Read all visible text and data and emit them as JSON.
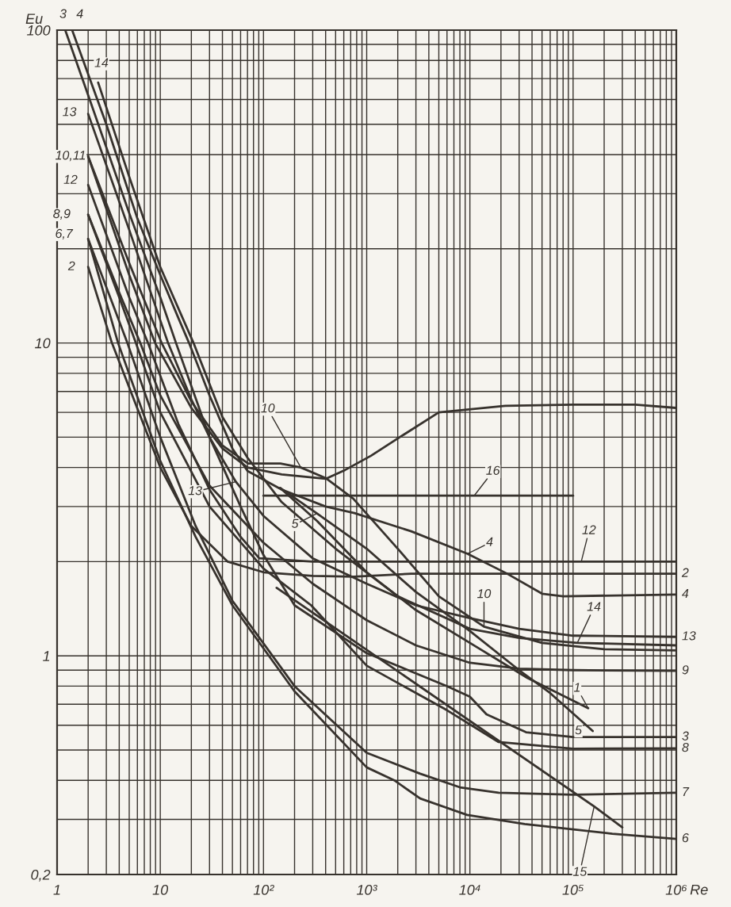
{
  "chart_data": {
    "type": "line",
    "xlabel": "Re",
    "ylabel": "Eu",
    "log": "xy",
    "grid": true,
    "xlim": [
      1,
      1000000
    ],
    "ylim": [
      0.2,
      100
    ],
    "xticks": [
      1,
      {
        "value": 2,
        "label": null
      },
      {
        "value": 3,
        "label": null
      },
      {
        "value": 4,
        "label": null
      },
      {
        "value": 5,
        "label": null
      },
      {
        "value": 6,
        "label": null
      },
      {
        "value": 7,
        "label": null
      },
      {
        "value": 8,
        "label": null
      },
      {
        "value": 9,
        "label": null
      },
      10,
      {
        "value": 20,
        "label": null
      },
      {
        "value": 30,
        "label": null
      },
      {
        "value": 40,
        "label": null
      },
      {
        "value": 50,
        "label": null
      },
      {
        "value": 60,
        "label": null
      },
      {
        "value": 70,
        "label": null
      },
      {
        "value": 80,
        "label": null
      },
      {
        "value": 90,
        "label": null
      },
      {
        "value": 100,
        "label": "10²"
      },
      {
        "value": 200,
        "label": null
      },
      {
        "value": 300,
        "label": null
      },
      {
        "value": 400,
        "label": null
      },
      {
        "value": 500,
        "label": null
      },
      {
        "value": 600,
        "label": null
      },
      {
        "value": 700,
        "label": null
      },
      {
        "value": 800,
        "label": null
      },
      {
        "value": 900,
        "label": null
      },
      {
        "value": 1000,
        "label": "10³"
      },
      {
        "value": 2000,
        "label": null
      },
      {
        "value": 3000,
        "label": null
      },
      {
        "value": 4000,
        "label": null
      },
      {
        "value": 5000,
        "label": null
      },
      {
        "value": 6000,
        "label": null
      },
      {
        "value": 7000,
        "label": null
      },
      {
        "value": 8000,
        "label": null
      },
      {
        "value": 9000,
        "label": null
      },
      {
        "value": 10000,
        "label": "10⁴"
      },
      {
        "value": 20000,
        "label": null
      },
      {
        "value": 30000,
        "label": null
      },
      {
        "value": 40000,
        "label": null
      },
      {
        "value": 50000,
        "label": null
      },
      {
        "value": 60000,
        "label": null
      },
      {
        "value": 70000,
        "label": null
      },
      {
        "value": 80000,
        "label": null
      },
      {
        "value": 90000,
        "label": null
      },
      {
        "value": 100000,
        "label": "10⁵"
      },
      {
        "value": 200000,
        "label": null
      },
      {
        "value": 300000,
        "label": null
      },
      {
        "value": 400000,
        "label": null
      },
      {
        "value": 500000,
        "label": null
      },
      {
        "value": 600000,
        "label": null
      },
      {
        "value": 700000,
        "label": null
      },
      {
        "value": 800000,
        "label": null
      },
      {
        "value": 900000,
        "label": null
      },
      {
        "value": 1000000,
        "label": "10⁶"
      }
    ],
    "yticks": [
      {
        "value": 0.2,
        "label": "0,2"
      },
      {
        "value": 0.3,
        "label": null
      },
      {
        "value": 0.4,
        "label": null
      },
      {
        "value": 0.5,
        "label": null
      },
      {
        "value": 0.6,
        "label": null
      },
      {
        "value": 0.7,
        "label": null
      },
      {
        "value": 0.8,
        "label": null
      },
      {
        "value": 0.9,
        "label": null
      },
      1,
      {
        "value": 2,
        "label": null
      },
      {
        "value": 3,
        "label": null
      },
      {
        "value": 4,
        "label": null
      },
      {
        "value": 5,
        "label": null
      },
      {
        "value": 6,
        "label": null
      },
      {
        "value": 7,
        "label": null
      },
      {
        "value": 8,
        "label": null
      },
      {
        "value": 9,
        "label": null
      },
      10,
      {
        "value": 20,
        "label": null
      },
      {
        "value": 30,
        "label": null
      },
      {
        "value": 40,
        "label": null
      },
      {
        "value": 50,
        "label": null
      },
      {
        "value": 60,
        "label": null
      },
      {
        "value": 70,
        "label": null
      },
      {
        "value": 80,
        "label": null
      },
      {
        "value": 90,
        "label": null
      },
      100
    ],
    "series": [
      {
        "color": "#37322d",
        "x": [
          1.2,
          2,
          5,
          10,
          14.2,
          30,
          60,
          100,
          200,
          1000,
          6000,
          10000,
          14500,
          35000,
          100000,
          1000000
        ],
        "values": [
          100,
          62,
          26,
          14,
          10,
          5,
          3.0,
          2.1,
          1.45,
          1.02,
          0.8,
          0.74,
          0.65,
          0.57,
          0.55,
          0.55
        ]
      },
      {
        "color": "#37322d",
        "x": [
          1.4,
          3,
          6,
          10,
          15,
          19,
          30,
          50,
          70,
          150,
          400,
          760,
          2700,
          9500,
          23000,
          50000,
          80000,
          1000000
        ],
        "values": [
          100,
          50,
          25,
          16.5,
          12,
          10,
          6.8,
          4.6,
          3.9,
          3.4,
          3.0,
          2.86,
          2.5,
          2.12,
          1.83,
          1.58,
          1.55,
          1.57
        ]
      },
      {
        "color": "#37322d",
        "x": [
          2.5,
          5,
          10,
          21,
          40,
          70,
          150,
          500,
          2000,
          10000,
          30000,
          110000,
          1000000
        ],
        "values": [
          68,
          34,
          17.5,
          10,
          5.8,
          4.3,
          3.1,
          2.2,
          1.55,
          1.22,
          1.14,
          1.1,
          1.08
        ]
      },
      {
        "color": "#37322d",
        "x": [
          2,
          5,
          11.9,
          20,
          30,
          54,
          100,
          300,
          1000,
          3000,
          10000,
          30000,
          100000,
          1000000
        ],
        "values": [
          54,
          23,
          10,
          6.6,
          5.0,
          3.6,
          2.8,
          2.05,
          1.7,
          1.45,
          1.32,
          1.22,
          1.16,
          1.15
        ]
      },
      {
        "color": "#37322d",
        "x": [
          2,
          5,
          8.9,
          20,
          40,
          70,
          150,
          400,
          620,
          1100,
          2300,
          5000,
          22000,
          100000,
          400000,
          1000000
        ],
        "values": [
          39.5,
          16.5,
          10,
          6.2,
          4.6,
          4.0,
          3.8,
          3.68,
          3.93,
          4.36,
          5.1,
          6.0,
          6.3,
          6.35,
          6.35,
          6.2
        ]
      },
      {
        "color": "#37322d",
        "x": [
          2,
          5,
          10.3,
          20,
          40,
          71,
          146,
          230,
          400,
          740,
          2000,
          5000,
          13700,
          50000,
          200000,
          1000000
        ],
        "values": [
          39.5,
          18,
          10,
          6.5,
          4.7,
          4.12,
          4.12,
          4.0,
          3.7,
          3.18,
          2.2,
          1.55,
          1.24,
          1.1,
          1.05,
          1.04
        ]
      },
      {
        "color": "#37322d",
        "x": [
          2,
          5,
          7.6,
          15,
          30,
          60,
          91,
          300,
          10000,
          120000,
          1000000
        ],
        "values": [
          32,
          14,
          10,
          5.5,
          3.4,
          2.4,
          2.05,
          2.0,
          2.0,
          2.0,
          2.0
        ]
      },
      {
        "color": "#37322d",
        "x": [
          2,
          4,
          5.8,
          10,
          30,
          100,
          290,
          1000,
          6000,
          19000,
          100000,
          1000000
        ],
        "values": [
          25.7,
          14,
          10,
          6.0,
          3.0,
          1.9,
          1.45,
          0.93,
          0.67,
          0.53,
          0.505,
          0.506
        ]
      },
      {
        "color": "#37322d",
        "x": [
          2,
          4,
          6.4,
          10,
          30,
          100,
          300,
          1000,
          3000,
          10000,
          30000,
          100000,
          1000000
        ],
        "values": [
          25.7,
          14.5,
          10,
          6.8,
          3.5,
          2.3,
          1.7,
          1.3,
          1.08,
          0.95,
          0.91,
          0.9,
          0.895
        ]
      },
      {
        "color": "#37322d",
        "x": [
          2,
          3.9,
          10,
          22,
          50,
          200,
          1000,
          1850,
          3300,
          9400,
          34000,
          240000,
          1000000
        ],
        "values": [
          21.5,
          10,
          4.2,
          2.4,
          1.45,
          0.77,
          0.44,
          0.4,
          0.35,
          0.31,
          0.29,
          0.27,
          0.26
        ]
      },
      {
        "color": "#37322d",
        "x": [
          2,
          4.8,
          10,
          22,
          50,
          200,
          1000,
          3300,
          8000,
          19000,
          100000,
          1000000
        ],
        "values": [
          21.5,
          10,
          5.0,
          2.6,
          1.5,
          0.8,
          0.49,
          0.42,
          0.38,
          0.365,
          0.36,
          0.365
        ]
      },
      {
        "color": "#37322d",
        "x": [
          2,
          3.4,
          10,
          20,
          45,
          100,
          300,
          750,
          2700,
          10000,
          1000000
        ],
        "values": [
          17.5,
          10,
          4.0,
          2.6,
          2.0,
          1.85,
          1.8,
          1.79,
          1.83,
          1.83,
          1.83
        ]
      },
      {
        "color": "#37322d",
        "x": [
          100,
          11000,
          100000
        ],
        "values": [
          3.25,
          3.25,
          3.25
        ]
      },
      {
        "color": "#37322d",
        "x": [
          134,
          160000,
          300000
        ],
        "values": [
          1.65,
          0.33,
          0.283
        ]
      },
      {
        "color": "#37322d",
        "x": [
          145,
          330,
          1000,
          3000,
          10000,
          36000,
          140000
        ],
        "values": [
          3.44,
          2.7,
          1.85,
          1.4,
          1.1,
          0.85,
          0.68
        ]
      },
      {
        "color": "#37322d",
        "x": [
          145,
          330,
          1000,
          3000,
          10000,
          30000,
          60000,
          155000
        ],
        "values": [
          3.44,
          2.85,
          2.2,
          1.6,
          1.2,
          0.9,
          0.76,
          0.575
        ]
      }
    ],
    "annotations": [
      {
        "text": "3",
        "x": 1.2,
        "y": 100
      },
      {
        "text": "4",
        "x": 1.4,
        "y": 100
      },
      {
        "text": "14",
        "x": 2.5,
        "y": 68
      },
      {
        "text": "13",
        "x": 2,
        "y": 54
      },
      {
        "text": "10,11",
        "x": 2,
        "y": 39.5
      },
      {
        "text": "12",
        "x": 2,
        "y": 32
      },
      {
        "text": "8,9",
        "x": 2,
        "y": 25.7
      },
      {
        "text": "6,7",
        "x": 2,
        "y": 21.5
      },
      {
        "text": "2",
        "x": 2,
        "y": 17.5
      },
      {
        "text": "10",
        "x": 230,
        "y": 4.0
      },
      {
        "text": "13",
        "x": 54,
        "y": 3.6
      },
      {
        "text": "5",
        "x": 330,
        "y": 2.85
      },
      {
        "text": "16",
        "x": 11000,
        "y": 3.25
      },
      {
        "text": "4",
        "x": 9500,
        "y": 2.12
      },
      {
        "text": "12",
        "x": 120000,
        "y": 2.0
      },
      {
        "text": "10",
        "x": 13700,
        "y": 1.24
      },
      {
        "text": "14",
        "x": 110000,
        "y": 1.1
      },
      {
        "text": "1",
        "x": 140000,
        "y": 0.68
      },
      {
        "text": "5",
        "x": 155000,
        "y": 0.575
      },
      {
        "text": "15",
        "x": 160000,
        "y": 0.33
      },
      {
        "text": "2",
        "x": 1000000,
        "y": 1.83
      },
      {
        "text": "4",
        "x": 1000000,
        "y": 1.57
      },
      {
        "text": "13",
        "x": 1000000,
        "y": 1.15
      },
      {
        "text": "9",
        "x": 1000000,
        "y": 0.895
      },
      {
        "text": "3",
        "x": 1000000,
        "y": 0.55
      },
      {
        "text": "8",
        "x": 1000000,
        "y": 0.506
      },
      {
        "text": "7",
        "x": 1000000,
        "y": 0.365
      },
      {
        "text": "6",
        "x": 1000000,
        "y": 0.26
      }
    ]
  }
}
